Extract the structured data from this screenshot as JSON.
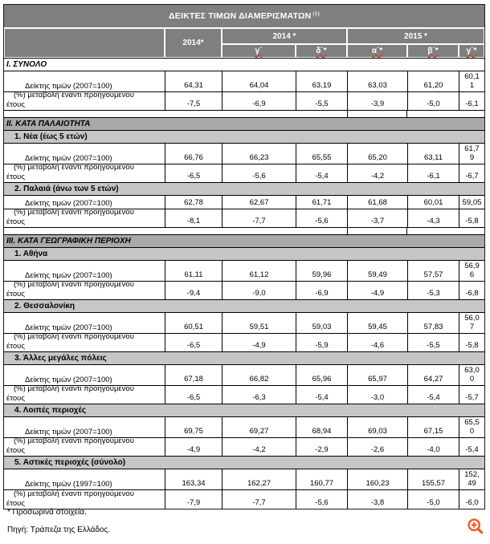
{
  "colors": {
    "header_gray": "#7f7f7f",
    "section_bar_gray": "#a9a9a9",
    "subsection_bar_gray": "#c6c6c6",
    "spellcheck_red": "#cc2a1e",
    "zoom_icon_orange": "#f05a28"
  },
  "header": {
    "title": "ΔΕΙΚΤΕΣ ΤΙΜΩΝ ΔΙΑΜΕΡΙΣΜΑΤΩΝ",
    "title_sup": "(1)",
    "annual_col": "2014*",
    "group_2014": "2014 *",
    "group_2015": "2015 *",
    "sub_2014": [
      "γ´",
      "δ´*"
    ],
    "sub_2015": [
      "α´*",
      "β´*",
      "γ´*"
    ]
  },
  "row_labels": {
    "pct": "(%) μεταβολή έναντι προηγούμενου\nέτους"
  },
  "sections": [
    {
      "label": "I. ΣΥΝΟΛΟ",
      "bar_style": "white",
      "spacer_after": true,
      "subsections": [
        {
          "label": null,
          "index_label": "Δείκτης τιμών (2007=100)",
          "index_values": [
            "64,31",
            "64,04",
            "63,19",
            "63,03",
            "61,20",
            "60,1\n1"
          ],
          "pct_values": [
            "-7,5",
            "-6,9",
            "-5,5",
            "-3,9",
            "-5,0",
            "-6,1"
          ]
        }
      ]
    },
    {
      "label": "II. ΚΑΤΑ ΠΑΛΑΙΟΤΗΤΑ",
      "bar_style": "gray",
      "spacer_after": true,
      "subsections": [
        {
          "label": "1. Νέα (έως 5 ετών)",
          "index_label": "Δείκτης τιμών (2007=100)",
          "index_values": [
            "66,76",
            "66,23",
            "65,55",
            "65,20",
            "63,11",
            "61,7\n9"
          ],
          "pct_values": [
            "-6,5",
            "-5,6",
            "-5,4",
            "-4,2",
            "-6,1",
            "-6,7"
          ]
        },
        {
          "label": "2. Παλαιά (άνω των 5 ετών)",
          "index_label": "Δείκτης τιμών (2007=100)",
          "index_values": [
            "62,78",
            "62,67",
            "61,71",
            "61,68",
            "60,01",
            "59,05"
          ],
          "pct_values": [
            "-8,1",
            "-7,7",
            "-5,6",
            "-3,7",
            "-4,3",
            "-5,8"
          ]
        }
      ]
    },
    {
      "label": "III. ΚΑΤΑ ΓΕΩΓΡΑΦΙΚΗ ΠΕΡΙΟΧΗ",
      "bar_style": "gray",
      "spacer_after": false,
      "subsections": [
        {
          "label": "1. Αθήνα",
          "index_label": "Δείκτης τιμών (2007=100)",
          "index_values": [
            "61,11",
            "61,12",
            "59,96",
            "59,49",
            "57,57",
            "56,9\n6"
          ],
          "pct_values": [
            "-9,4",
            "-9,0",
            "-6,9",
            "-4,9",
            "-5,3",
            "-6,8"
          ]
        },
        {
          "label": "2. Θεσσαλονίκη",
          "index_label": "Δείκτης τιμών (2007=100)",
          "index_values": [
            "60,51",
            "59,51",
            "59,03",
            "59,45",
            "57,83",
            "56,0\n7"
          ],
          "pct_values": [
            "-6,5",
            "-4,9",
            "-5,9",
            "-4,6",
            "-5,5",
            "-5,8"
          ]
        },
        {
          "label": "3. Άλλες μεγάλες πόλεις",
          "index_label": "Δείκτης τιμών (2007=100)",
          "index_values": [
            "67,18",
            "66,82",
            "65,96",
            "65,97",
            "64,27",
            "63,0\n0"
          ],
          "pct_values": [
            "-6,5",
            "-6,3",
            "-5,4",
            "-3,0",
            "-5,4",
            "-5,7"
          ]
        },
        {
          "label": "4. Λοιπές περιοχές",
          "index_label": "Δείκτης τιμών (2007=100)",
          "index_values": [
            "69,75",
            "69,27",
            "68,94",
            "69,03",
            "67,15",
            "65,5\n0"
          ],
          "pct_values": [
            "-4,9",
            "-4,2",
            "-2,9",
            "-2,6",
            "-4,0",
            "-5,4"
          ]
        },
        {
          "label": "5. Αστικές περιοχές (σύνολο)",
          "index_label": "Δείκτης τιμών (1997=100)",
          "index_values": [
            "163,34",
            "162,27",
            "160,77",
            "160,23",
            "155,57",
            "152,\n49"
          ],
          "pct_values": [
            "-7,9",
            "-7,7",
            "-5,6",
            "-3,8",
            "-5,0",
            "-6,0"
          ]
        }
      ]
    }
  ],
  "footer": {
    "footnote": "* Προσωρινά στοιχεία.",
    "source": "Πηγή: Τράπεζα της Ελλάδος.",
    "zoom_icon": "zoom-in-magnifier"
  }
}
